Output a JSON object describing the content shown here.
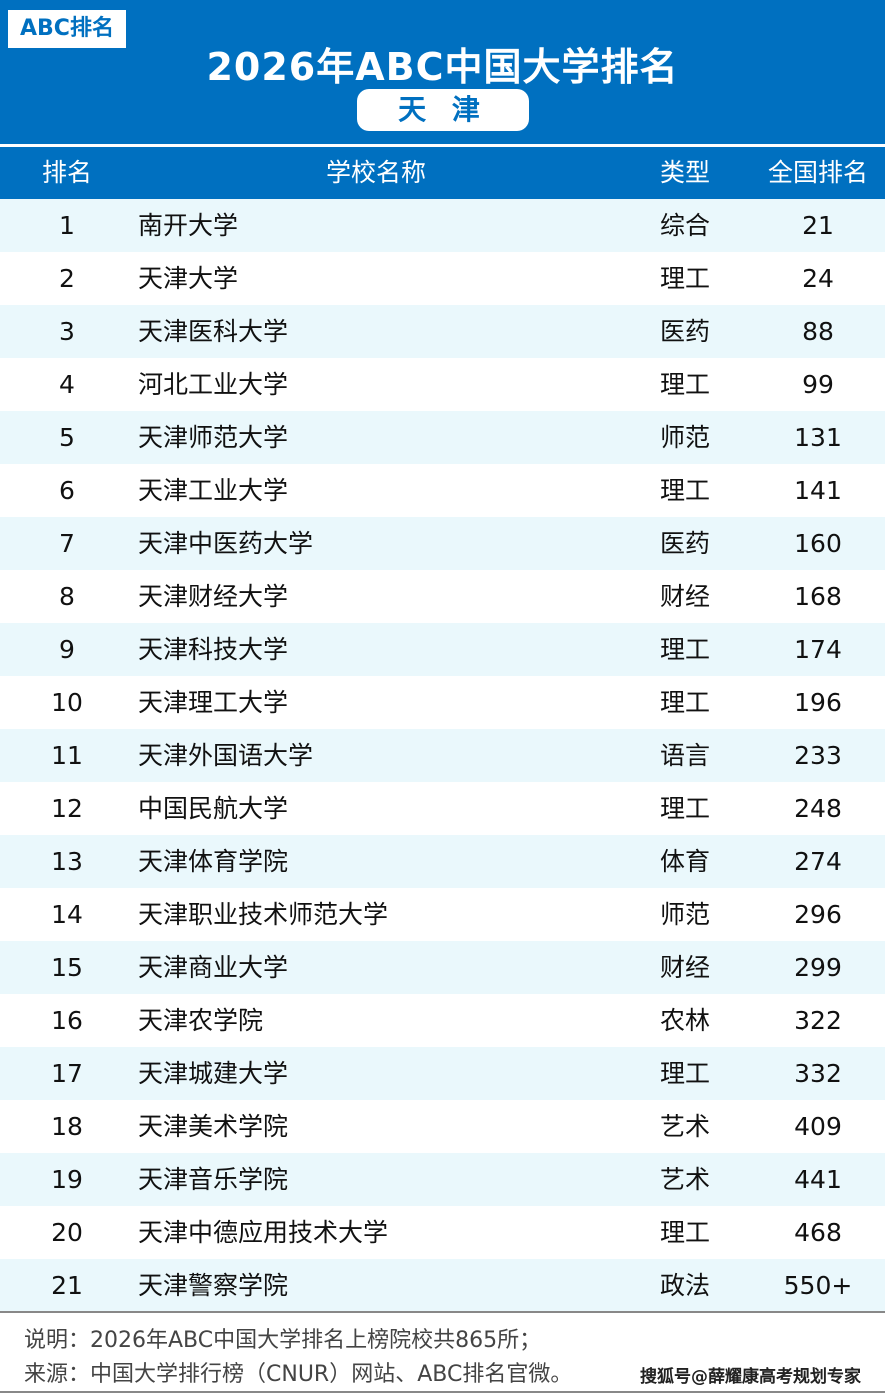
{
  "header": {
    "logo": "ABC排名",
    "title": "2026年ABC中国大学排名",
    "region": "天 津"
  },
  "columns": [
    "排名",
    "学校名称",
    "类型",
    "全国排名"
  ],
  "rows": [
    [
      "1",
      "南开大学",
      "综合",
      "21"
    ],
    [
      "2",
      "天津大学",
      "理工",
      "24"
    ],
    [
      "3",
      "天津医科大学",
      "医药",
      "88"
    ],
    [
      "4",
      "河北工业大学",
      "理工",
      "99"
    ],
    [
      "5",
      "天津师范大学",
      "师范",
      "131"
    ],
    [
      "6",
      "天津工业大学",
      "理工",
      "141"
    ],
    [
      "7",
      "天津中医药大学",
      "医药",
      "160"
    ],
    [
      "8",
      "天津财经大学",
      "财经",
      "168"
    ],
    [
      "9",
      "天津科技大学",
      "理工",
      "174"
    ],
    [
      "10",
      "天津理工大学",
      "理工",
      "196"
    ],
    [
      "11",
      "天津外国语大学",
      "语言",
      "233"
    ],
    [
      "12",
      "中国民航大学",
      "理工",
      "248"
    ],
    [
      "13",
      "天津体育学院",
      "体育",
      "274"
    ],
    [
      "14",
      "天津职业技术师范大学",
      "师范",
      "296"
    ],
    [
      "15",
      "天津商业大学",
      "财经",
      "299"
    ],
    [
      "16",
      "天津农学院",
      "农林",
      "322"
    ],
    [
      "17",
      "天津城建大学",
      "理工",
      "332"
    ],
    [
      "18",
      "天津美术学院",
      "艺术",
      "409"
    ],
    [
      "19",
      "天津音乐学院",
      "艺术",
      "441"
    ],
    [
      "20",
      "天津中德应用技术大学",
      "理工",
      "468"
    ],
    [
      "21",
      "天津警察学院",
      "政法",
      "550+"
    ]
  ],
  "footer": {
    "note": "说明：2026年ABC中国大学排名上榜院校共865所；",
    "source": "来源：中国大学排行榜（CNUR）网站、ABC排名官微。",
    "watermark": "搜狐号@薛耀康高考规划专家"
  },
  "colors": {
    "brand": "#0070c0",
    "row_alt": "#eaf8fc"
  }
}
